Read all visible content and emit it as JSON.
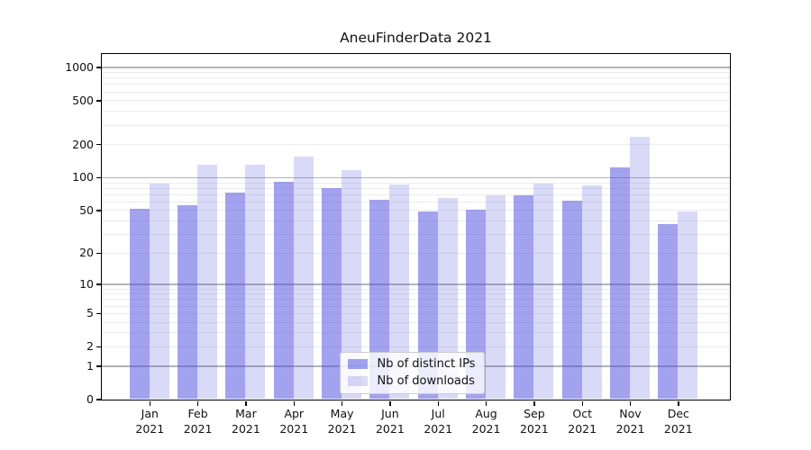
{
  "figure": {
    "background": "#ffffff",
    "text_color": "#111111",
    "spine_color": "#000000"
  },
  "chart_data": {
    "type": "bar",
    "title": "AneuFinderData 2021",
    "categories": [
      "Jan 2021",
      "Feb 2021",
      "Mar 2021",
      "Apr 2021",
      "May 2021",
      "Jun 2021",
      "Jul 2021",
      "Aug 2021",
      "Sep 2021",
      "Oct 2021",
      "Nov 2021",
      "Dec 2021"
    ],
    "series": [
      {
        "name": "Nb of distinct IPs",
        "values": [
          51,
          56,
          72,
          91,
          79,
          62,
          49,
          50,
          68,
          61,
          124,
          37
        ],
        "color": "#5050e1",
        "alpha": 0.53,
        "apparent_color": "#a2a2ef"
      },
      {
        "name": "Nb of downloads",
        "values": [
          88,
          131,
          131,
          155,
          117,
          86,
          65,
          68,
          88,
          85,
          232,
          49
        ],
        "color": "#5050e1",
        "alpha": 0.22,
        "apparent_color": "#d8d8f8"
      }
    ],
    "xlabel": "",
    "ylabel": "",
    "yscale": "log1p",
    "y_ticks": [
      0,
      1,
      2,
      5,
      10,
      20,
      50,
      100,
      200,
      500,
      1000
    ],
    "ylim": [
      0,
      1320
    ],
    "grid": {
      "orientation": "horizontal",
      "major_at": [
        1,
        10,
        100,
        1000
      ],
      "minor_at": "2-9 × 10^k",
      "major_color": "#b3b3b3",
      "minor_color": "#ececec"
    },
    "legend": {
      "position": "lower center",
      "entries": [
        "Nb of distinct IPs",
        "Nb of downloads"
      ]
    }
  }
}
